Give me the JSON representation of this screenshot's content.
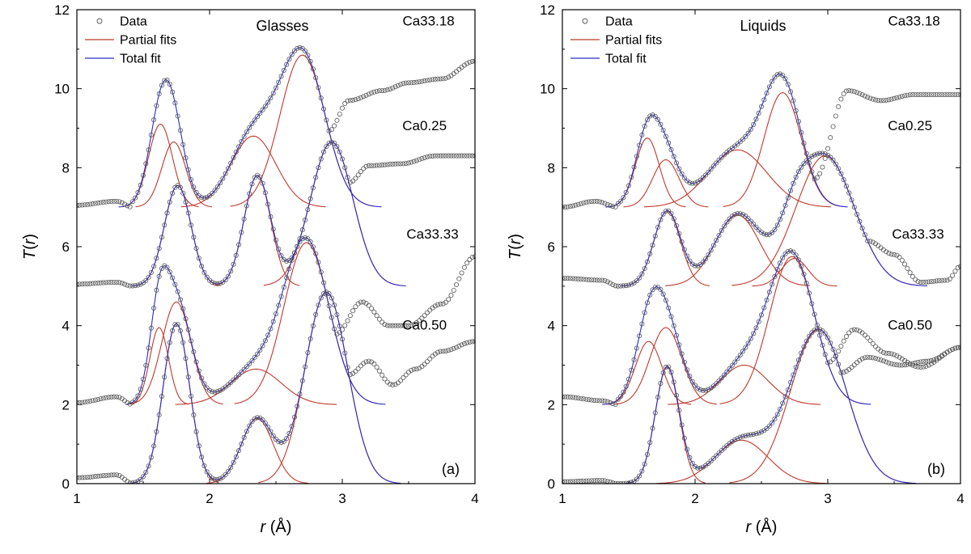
{
  "chart_data": [
    {
      "type": "line",
      "panel_label": "(a)",
      "title": "Glasses",
      "xlabel": "r (Å)",
      "ylabel": "T(r)",
      "xlim": [
        1,
        4
      ],
      "ylim": [
        0,
        12
      ],
      "xticks": [
        "1",
        "2",
        "3",
        "4"
      ],
      "yticks": [
        "0",
        "2",
        "4",
        "6",
        "8",
        "10",
        "12"
      ],
      "legend": {
        "placement": "top-left",
        "entries": [
          "Data",
          "Partial fits",
          "Total fit"
        ]
      },
      "colors": {
        "data": "#555555",
        "partial": "#c0392b",
        "total": "#2c2cc8"
      },
      "series": [
        {
          "label": "Ca33.18",
          "offset": 7,
          "pre": [
            [
              1.0,
              0.05
            ],
            [
              1.3,
              0.15
            ],
            [
              1.42,
              0.0
            ]
          ],
          "peaks": [
            {
              "center": 1.63,
              "height": 2.1,
              "sigma": 0.09
            },
            {
              "center": 1.73,
              "height": 1.65,
              "sigma": 0.09
            },
            {
              "center": 2.33,
              "height": 1.8,
              "sigma": 0.17
            },
            {
              "center": 2.7,
              "height": 3.85,
              "sigma": 0.17
            }
          ],
          "tail": [
            [
              2.9,
              2.9
            ],
            [
              3.05,
              2.7
            ],
            [
              3.3,
              2.95
            ],
            [
              3.5,
              3.15
            ],
            [
              3.75,
              3.25
            ],
            [
              4.0,
              3.7
            ]
          ]
        },
        {
          "label": "Ca0.25",
          "offset": 5,
          "pre": [
            [
              1.0,
              0.05
            ],
            [
              1.3,
              0.1
            ],
            [
              1.42,
              0.0
            ]
          ],
          "peaks": [
            {
              "center": 1.76,
              "height": 2.55,
              "sigma": 0.1
            },
            {
              "center": 2.36,
              "height": 2.8,
              "sigma": 0.1
            },
            {
              "center": 2.92,
              "height": 3.65,
              "sigma": 0.16
            }
          ],
          "tail": [
            [
              3.05,
              3.6
            ],
            [
              3.2,
              3.05
            ],
            [
              3.45,
              3.1
            ],
            [
              3.7,
              3.3
            ],
            [
              4.0,
              3.3
            ]
          ]
        },
        {
          "label": "Ca33.33",
          "offset": 2,
          "pre": [
            [
              1.0,
              0.05
            ],
            [
              1.3,
              0.2
            ],
            [
              1.42,
              0.0
            ]
          ],
          "peaks": [
            {
              "center": 1.62,
              "height": 1.95,
              "sigma": 0.07
            },
            {
              "center": 1.75,
              "height": 2.6,
              "sigma": 0.11
            },
            {
              "center": 2.35,
              "height": 0.9,
              "sigma": 0.19
            },
            {
              "center": 2.73,
              "height": 4.1,
              "sigma": 0.17
            }
          ],
          "tail": [
            [
              2.95,
              4.0
            ],
            [
              3.15,
              2.6
            ],
            [
              3.35,
              2.0
            ],
            [
              3.5,
              2.0
            ],
            [
              3.75,
              2.55
            ],
            [
              4.0,
              3.75
            ]
          ]
        },
        {
          "label": "Ca0.50",
          "offset": 0,
          "pre": [
            [
              1.0,
              0.15
            ],
            [
              1.3,
              0.22
            ],
            [
              1.42,
              0.0
            ]
          ],
          "peaks": [
            {
              "center": 1.75,
              "height": 4.05,
              "sigma": 0.1
            },
            {
              "center": 2.36,
              "height": 1.65,
              "sigma": 0.12
            },
            {
              "center": 2.88,
              "height": 4.85,
              "sigma": 0.16
            }
          ],
          "tail": [
            [
              3.05,
              4.2
            ],
            [
              3.2,
              3.1
            ],
            [
              3.38,
              2.5
            ],
            [
              3.55,
              2.9
            ],
            [
              3.75,
              3.35
            ],
            [
              4.0,
              3.6
            ]
          ]
        }
      ],
      "curve_labels": [
        {
          "text": "Ca33.18",
          "x": 3.65,
          "y": 11.6
        },
        {
          "text": "Ca0.25",
          "x": 3.62,
          "y": 8.95
        },
        {
          "text": "Ca33.33",
          "x": 3.68,
          "y": 6.2
        },
        {
          "text": "Ca0.50",
          "x": 3.62,
          "y": 3.9
        }
      ]
    },
    {
      "type": "line",
      "panel_label": "(b)",
      "title": "Liquids",
      "xlabel": "r (Å)",
      "ylabel": "T(r)",
      "xlim": [
        1,
        4
      ],
      "ylim": [
        0,
        12
      ],
      "xticks": [
        "1",
        "2",
        "3",
        "4"
      ],
      "yticks": [
        "0",
        "2",
        "4",
        "6",
        "8",
        "10",
        "12"
      ],
      "legend": {
        "placement": "top-left",
        "entries": [
          "Data",
          "Partial fits",
          "Total fit"
        ]
      },
      "colors": {
        "data": "#555555",
        "partial": "#c0392b",
        "total": "#2c2cc8"
      },
      "series": [
        {
          "label": "Ca33.18",
          "offset": 7,
          "pre": [
            [
              1.0,
              0.0
            ],
            [
              1.25,
              0.15
            ],
            [
              1.42,
              0.0
            ]
          ],
          "peaks": [
            {
              "center": 1.64,
              "height": 1.75,
              "sigma": 0.09
            },
            {
              "center": 1.78,
              "height": 1.2,
              "sigma": 0.1
            },
            {
              "center": 2.32,
              "height": 1.45,
              "sigma": 0.22
            },
            {
              "center": 2.66,
              "height": 2.9,
              "sigma": 0.14
            }
          ],
          "tail": [
            [
              2.9,
              3.3
            ],
            [
              3.15,
              2.95
            ],
            [
              3.4,
              2.7
            ],
            [
              3.65,
              2.85
            ],
            [
              4.0,
              2.85
            ]
          ]
        },
        {
          "label": "Ca0.25",
          "offset": 5,
          "pre": [
            [
              1.0,
              0.2
            ],
            [
              1.3,
              0.15
            ],
            [
              1.42,
              0.0
            ]
          ],
          "peaks": [
            {
              "center": 1.79,
              "height": 1.9,
              "sigma": 0.1
            },
            {
              "center": 2.32,
              "height": 1.8,
              "sigma": 0.17
            },
            {
              "center": 2.75,
              "height": 0.7,
              "sigma": 0.1
            },
            {
              "center": 2.98,
              "height": 3.3,
              "sigma": 0.22
            }
          ],
          "tail": [
            [
              3.3,
              2.1
            ],
            [
              3.5,
              0.8
            ],
            [
              3.7,
              0.1
            ],
            [
              3.9,
              0.15
            ],
            [
              4.0,
              0.5
            ]
          ]
        },
        {
          "label": "Ca33.33",
          "offset": 2,
          "pre": [
            [
              1.0,
              0.2
            ],
            [
              1.3,
              0.1
            ],
            [
              1.42,
              0.0
            ]
          ],
          "peaks": [
            {
              "center": 1.65,
              "height": 1.6,
              "sigma": 0.1
            },
            {
              "center": 1.78,
              "height": 1.95,
              "sigma": 0.12
            },
            {
              "center": 2.37,
              "height": 1.0,
              "sigma": 0.18
            },
            {
              "center": 2.73,
              "height": 3.75,
              "sigma": 0.17
            }
          ],
          "tail": [
            [
              3.0,
              2.95
            ],
            [
              3.2,
              1.9
            ],
            [
              3.45,
              1.3
            ],
            [
              3.7,
              0.95
            ],
            [
              4.0,
              1.45
            ]
          ]
        },
        {
          "label": "Ca0.50",
          "offset": 0,
          "pre": [
            [
              1.0,
              0.05
            ],
            [
              1.3,
              0.08
            ],
            [
              1.42,
              0.0
            ]
          ],
          "peaks": [
            {
              "center": 1.79,
              "height": 2.95,
              "sigma": 0.09
            },
            {
              "center": 2.35,
              "height": 1.1,
              "sigma": 0.2
            },
            {
              "center": 2.93,
              "height": 3.9,
              "sigma": 0.21
            }
          ],
          "tail": [
            [
              3.1,
              3.75
            ],
            [
              3.3,
              3.2
            ],
            [
              3.55,
              3.0
            ],
            [
              3.75,
              3.1
            ],
            [
              4.0,
              3.45
            ]
          ]
        }
      ],
      "curve_labels": [
        {
          "text": "Ca33.18",
          "x": 3.65,
          "y": 11.6
        },
        {
          "text": "Ca0.25",
          "x": 3.62,
          "y": 8.95
        },
        {
          "text": "Ca33.33",
          "x": 3.68,
          "y": 6.2
        },
        {
          "text": "Ca0.50",
          "x": 3.62,
          "y": 3.9
        }
      ]
    }
  ]
}
